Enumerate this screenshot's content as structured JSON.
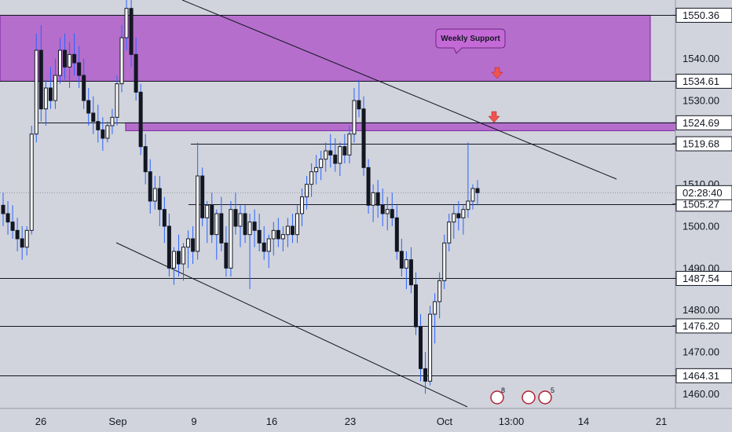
{
  "chart_data": {
    "type": "candlestick",
    "title": "",
    "ylim": [
      1456.5,
      1554
    ],
    "x_ticks": [
      "26",
      "Sep",
      "9",
      "16",
      "23",
      "Oct",
      "13:00",
      "14",
      "21"
    ],
    "y_ticks": [
      1460,
      1470,
      1480,
      1490,
      1500,
      1510,
      1520,
      1530,
      1540
    ],
    "zones": [
      {
        "name": "upper-zone",
        "low": 1534.61,
        "high": 1550.36,
        "color": "#b05cc9"
      },
      {
        "name": "lower-zone",
        "low": 1522.8,
        "high": 1524.69,
        "color": "#b05cc9"
      }
    ],
    "levels": [
      1550.36,
      1534.61,
      1524.69,
      1519.68,
      1505.27,
      1487.54,
      1476.2,
      1464.31
    ],
    "level_labels": [
      "1550.36",
      "1534.61",
      "1524.69",
      "1519.68",
      "1505.27",
      "1487.54",
      "1476.20",
      "1464.31"
    ],
    "price_labels": [
      "1550.36",
      "1540.00",
      "1534.61",
      "1530.00",
      "1524.69",
      "1519.68",
      "1510.00",
      "1505.27",
      "1500.00",
      "1490.00",
      "1487.54",
      "1480.00",
      "1476.20",
      "1470.00",
      "1464.31",
      "1460.00"
    ],
    "current_price": {
      "value": 1508.0,
      "label": "02:28:40"
    },
    "annotation": "Weekly Support",
    "badges": [
      "8",
      "5"
    ],
    "candles": [
      [
        1505,
        1508,
        1500,
        1503
      ],
      [
        1503,
        1506,
        1498,
        1501
      ],
      [
        1501,
        1505,
        1497,
        1499
      ],
      [
        1499,
        1502,
        1494,
        1497
      ],
      [
        1497,
        1500,
        1492,
        1495
      ],
      [
        1495,
        1500,
        1493,
        1499
      ],
      [
        1499,
        1524,
        1498,
        1522
      ],
      [
        1522,
        1546,
        1520,
        1542
      ],
      [
        1542,
        1548,
        1525,
        1528
      ],
      [
        1528,
        1535,
        1524,
        1533
      ],
      [
        1533,
        1538,
        1528,
        1530
      ],
      [
        1530,
        1540,
        1528,
        1536
      ],
      [
        1536,
        1545,
        1534,
        1542
      ],
      [
        1542,
        1546,
        1535,
        1538
      ],
      [
        1538,
        1544,
        1533,
        1541
      ],
      [
        1541,
        1546,
        1536,
        1539
      ],
      [
        1539,
        1543,
        1533,
        1536
      ],
      [
        1536,
        1540,
        1528,
        1530
      ],
      [
        1530,
        1533,
        1524,
        1527
      ],
      [
        1527,
        1531,
        1522,
        1525
      ],
      [
        1525,
        1529,
        1520,
        1523
      ],
      [
        1523,
        1526,
        1518,
        1521
      ],
      [
        1521,
        1525,
        1520,
        1524
      ],
      [
        1524,
        1528,
        1522,
        1526
      ],
      [
        1526,
        1536,
        1524,
        1534
      ],
      [
        1534,
        1548,
        1532,
        1545
      ],
      [
        1545,
        1556,
        1542,
        1552
      ],
      [
        1552,
        1557,
        1538,
        1541
      ],
      [
        1541,
        1545,
        1530,
        1532
      ],
      [
        1532,
        1534,
        1517,
        1519
      ],
      [
        1519,
        1522,
        1510,
        1513
      ],
      [
        1513,
        1516,
        1503,
        1506
      ],
      [
        1506,
        1512,
        1504,
        1509
      ],
      [
        1509,
        1512,
        1500,
        1504
      ],
      [
        1504,
        1507,
        1496,
        1500
      ],
      [
        1500,
        1503,
        1488,
        1490
      ],
      [
        1490,
        1495,
        1486,
        1494
      ],
      [
        1494,
        1498,
        1488,
        1491
      ],
      [
        1491,
        1496,
        1487,
        1495
      ],
      [
        1495,
        1499,
        1490,
        1497
      ],
      [
        1497,
        1500,
        1491,
        1494
      ],
      [
        1494,
        1520,
        1492,
        1512
      ],
      [
        1512,
        1514,
        1500,
        1502
      ],
      [
        1502,
        1506,
        1496,
        1505
      ],
      [
        1505,
        1508,
        1496,
        1498
      ],
      [
        1498,
        1504,
        1492,
        1503
      ],
      [
        1503,
        1507,
        1494,
        1496
      ],
      [
        1496,
        1500,
        1488,
        1490
      ],
      [
        1490,
        1506,
        1488,
        1504
      ],
      [
        1504,
        1508,
        1498,
        1500
      ],
      [
        1500,
        1505,
        1495,
        1503
      ],
      [
        1503,
        1505,
        1496,
        1498
      ],
      [
        1498,
        1503,
        1485,
        1501
      ],
      [
        1501,
        1504,
        1495,
        1499
      ],
      [
        1499,
        1503,
        1494,
        1496
      ],
      [
        1496,
        1500,
        1492,
        1494
      ],
      [
        1494,
        1498,
        1490,
        1497
      ],
      [
        1497,
        1501,
        1493,
        1499
      ],
      [
        1499,
        1502,
        1495,
        1497
      ],
      [
        1497,
        1500,
        1494,
        1498
      ],
      [
        1498,
        1502,
        1495,
        1500
      ],
      [
        1500,
        1503,
        1496,
        1498
      ],
      [
        1498,
        1505,
        1496,
        1503
      ],
      [
        1503,
        1509,
        1500,
        1507
      ],
      [
        1507,
        1512,
        1504,
        1510
      ],
      [
        1510,
        1515,
        1507,
        1513
      ],
      [
        1513,
        1517,
        1510,
        1514
      ],
      [
        1514,
        1518,
        1511,
        1516
      ],
      [
        1516,
        1520,
        1513,
        1518
      ],
      [
        1518,
        1522,
        1514,
        1517
      ],
      [
        1517,
        1521,
        1513,
        1515
      ],
      [
        1515,
        1520,
        1512,
        1519
      ],
      [
        1519,
        1522,
        1515,
        1517
      ],
      [
        1517,
        1524,
        1515,
        1522
      ],
      [
        1522,
        1533,
        1520,
        1530
      ],
      [
        1530,
        1535,
        1526,
        1528
      ],
      [
        1528,
        1531,
        1512,
        1514
      ],
      [
        1514,
        1516,
        1503,
        1505
      ],
      [
        1505,
        1510,
        1501,
        1508
      ],
      [
        1508,
        1511,
        1502,
        1505
      ],
      [
        1505,
        1509,
        1500,
        1503
      ],
      [
        1503,
        1507,
        1499,
        1504
      ],
      [
        1504,
        1508,
        1500,
        1502
      ],
      [
        1502,
        1505,
        1492,
        1494
      ],
      [
        1494,
        1497,
        1488,
        1490
      ],
      [
        1490,
        1494,
        1485,
        1492
      ],
      [
        1492,
        1495,
        1484,
        1486
      ],
      [
        1486,
        1489,
        1474,
        1476
      ],
      [
        1476,
        1479,
        1463,
        1466
      ],
      [
        1466,
        1470,
        1460,
        1463
      ],
      [
        1463,
        1481,
        1462,
        1479
      ],
      [
        1479,
        1484,
        1472,
        1482
      ],
      [
        1482,
        1489,
        1478,
        1487
      ],
      [
        1487,
        1498,
        1485,
        1496
      ],
      [
        1496,
        1503,
        1494,
        1501
      ],
      [
        1501,
        1505,
        1497,
        1503
      ],
      [
        1503,
        1506,
        1499,
        1502
      ],
      [
        1502,
        1505,
        1498,
        1504
      ],
      [
        1504,
        1520,
        1502,
        1506
      ],
      [
        1506,
        1510,
        1504,
        1509
      ],
      [
        1509,
        1511,
        1505,
        1508
      ]
    ]
  }
}
